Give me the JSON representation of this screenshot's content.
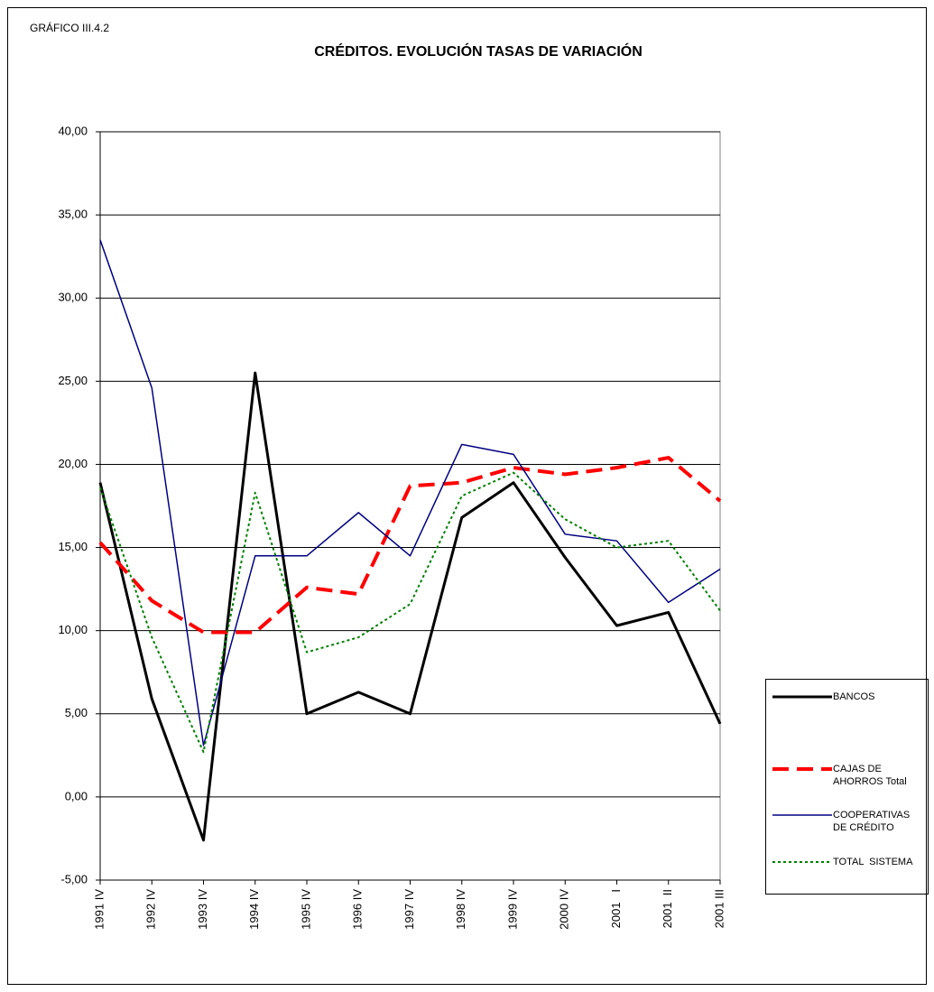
{
  "chart_data": {
    "type": "line",
    "figure_label": "GRÁFICO III.4.2",
    "title": "CRÉDITOS. EVOLUCIÓN TASAS DE VARIACIÓN",
    "categories": [
      "1991 IV",
      "1992 IV",
      "1993 IV",
      "1994 IV",
      "1995 IV",
      "1996 IV",
      "1997 IV",
      "1998 IV",
      "1999 IV",
      "2000 IV",
      "2001   I",
      "2001  II",
      "2001 III"
    ],
    "series": [
      {
        "name": "BANCOS",
        "color": "#000000",
        "dash": "solid",
        "values": [
          18.9,
          5.9,
          -2.6,
          25.5,
          5.0,
          6.3,
          5.0,
          16.8,
          18.9,
          14.4,
          10.3,
          11.1,
          4.4
        ]
      },
      {
        "name": "CAJAS DE AHORROS Total",
        "color": "#ff0000",
        "dash": "dashed",
        "values": [
          15.3,
          11.8,
          9.9,
          9.9,
          12.6,
          12.2,
          18.7,
          18.9,
          19.8,
          19.4,
          19.8,
          20.4,
          17.8
        ]
      },
      {
        "name": "COOPERATIVAS DE CRÉDITO",
        "color": "#000080",
        "dash": "solid",
        "values": [
          33.5,
          24.6,
          3.1,
          14.5,
          14.5,
          17.1,
          14.5,
          21.2,
          20.6,
          15.8,
          15.4,
          11.7,
          13.7
        ]
      },
      {
        "name": "TOTAL  SISTEMA",
        "color": "#008000",
        "dash": "dotted",
        "values": [
          18.6,
          9.6,
          2.7,
          18.3,
          8.7,
          9.6,
          11.6,
          18.1,
          19.5,
          16.7,
          15.0,
          15.4,
          11.2
        ]
      }
    ],
    "ylim": [
      -5,
      40
    ],
    "yticks": [
      {
        "value": -5,
        "label": "-5,00"
      },
      {
        "value": 0,
        "label": "0,00"
      },
      {
        "value": 5,
        "label": "5,00"
      },
      {
        "value": 10,
        "label": "10,00"
      },
      {
        "value": 15,
        "label": "15,00"
      },
      {
        "value": 20,
        "label": "20,00"
      },
      {
        "value": 25,
        "label": "25,00"
      },
      {
        "value": 30,
        "label": "30,00"
      },
      {
        "value": 35,
        "label": "35,00"
      },
      {
        "value": 40,
        "label": "40,00"
      }
    ],
    "grid": true,
    "legend": "right"
  }
}
